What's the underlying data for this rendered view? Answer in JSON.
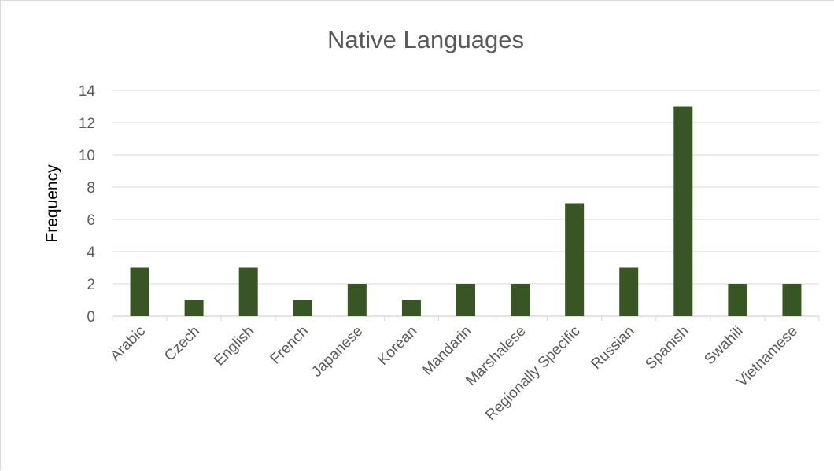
{
  "chart_data": {
    "type": "bar",
    "title": "Native Languages",
    "xlabel": "",
    "ylabel": "Frequency",
    "ylim": [
      0,
      14
    ],
    "yticks": [
      0,
      2,
      4,
      6,
      8,
      10,
      12,
      14
    ],
    "grid": true,
    "categories": [
      "Arabic",
      "Czech",
      "English",
      "French",
      "Japanese",
      "Korean",
      "Mandarin",
      "Marshalese",
      "Regionally Specific",
      "Russian",
      "Spanish",
      "Swahili",
      "Vietnamese"
    ],
    "values": [
      3,
      1,
      3,
      1,
      2,
      1,
      2,
      2,
      7,
      3,
      13,
      2,
      2
    ],
    "bar_color": "#375623",
    "grid_color": "#d9d9d9"
  }
}
